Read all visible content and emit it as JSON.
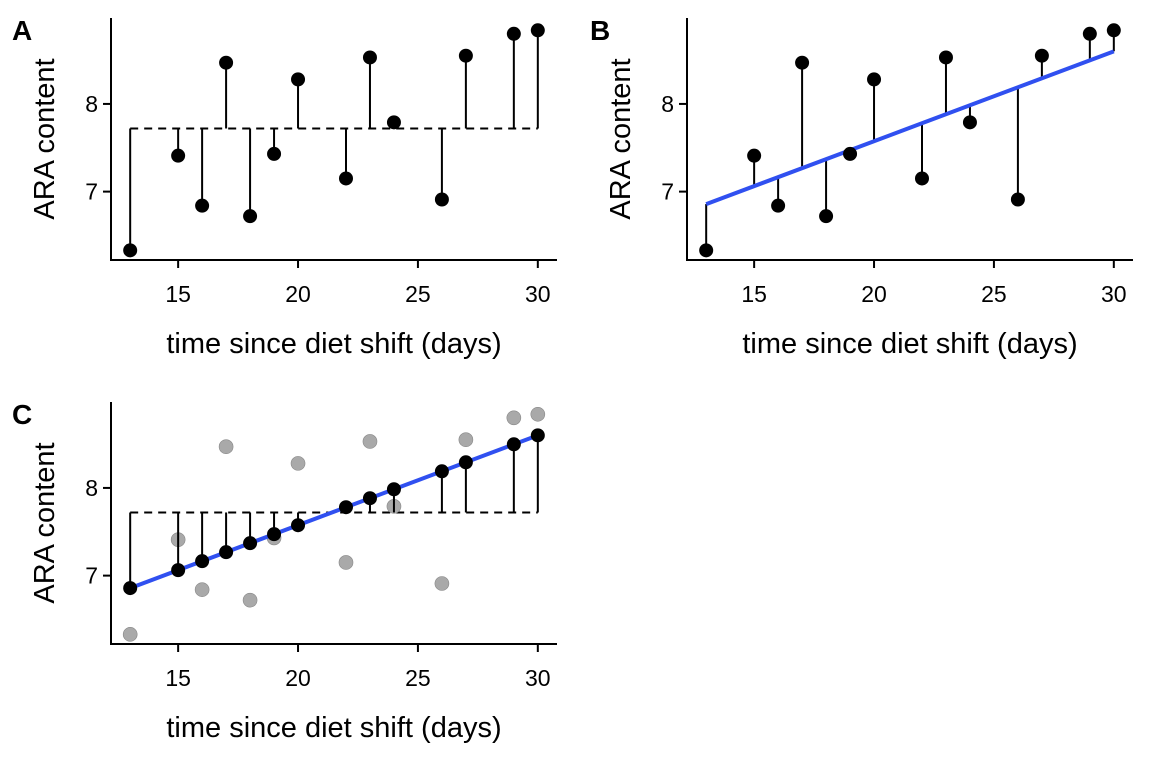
{
  "colors": {
    "point": "#000000",
    "fitted_point": "#000000",
    "observed_point": "#a9a9a9",
    "regression_line": "#3050f0",
    "axis": "#000000"
  },
  "chart_data": [
    {
      "type": "scatter",
      "panel": "A",
      "xlabel": "time since diet shift (days)",
      "ylabel": "ARA content",
      "xlim": [
        12.2,
        30.8
      ],
      "ylim": [
        6.22,
        8.98
      ],
      "xticks": [
        15,
        20,
        25,
        30
      ],
      "yticks": [
        7,
        8
      ],
      "mean_line": 7.72,
      "x": [
        13,
        15,
        16,
        17,
        18,
        19,
        20,
        22,
        23,
        24,
        26,
        27,
        29,
        30
      ],
      "y": [
        6.33,
        7.41,
        6.84,
        8.47,
        6.72,
        7.43,
        8.28,
        7.15,
        8.53,
        7.79,
        6.91,
        8.55,
        8.8,
        8.84
      ],
      "residuals_to": "mean"
    },
    {
      "type": "scatter",
      "panel": "B",
      "xlabel": "time since diet shift (days)",
      "ylabel": "ARA content",
      "xlim": [
        12.2,
        30.8
      ],
      "ylim": [
        6.22,
        8.98
      ],
      "xticks": [
        15,
        20,
        25,
        30
      ],
      "yticks": [
        7,
        8
      ],
      "regression": {
        "intercept": 5.525,
        "slope": 0.1025
      },
      "x": [
        13,
        15,
        16,
        17,
        18,
        19,
        20,
        22,
        23,
        24,
        26,
        27,
        29,
        30
      ],
      "y": [
        6.33,
        7.41,
        6.84,
        8.47,
        6.72,
        7.43,
        8.28,
        7.15,
        8.53,
        7.79,
        6.91,
        8.55,
        8.8,
        8.84
      ],
      "residuals_to": "fit"
    },
    {
      "type": "scatter",
      "panel": "C",
      "xlabel": "time since diet shift (days)",
      "ylabel": "ARA content",
      "xlim": [
        12.2,
        30.8
      ],
      "ylim": [
        6.22,
        8.98
      ],
      "xticks": [
        15,
        20,
        25,
        30
      ],
      "yticks": [
        7,
        8
      ],
      "mean_line": 7.72,
      "regression": {
        "intercept": 5.525,
        "slope": 0.1025
      },
      "x": [
        13,
        15,
        16,
        17,
        18,
        19,
        20,
        22,
        23,
        24,
        26,
        27,
        29,
        30
      ],
      "y": [
        6.33,
        7.41,
        6.84,
        8.47,
        6.72,
        7.43,
        8.28,
        7.15,
        8.53,
        7.79,
        6.91,
        8.55,
        8.8,
        8.84
      ],
      "residuals_to": "mean_from_fit"
    }
  ]
}
